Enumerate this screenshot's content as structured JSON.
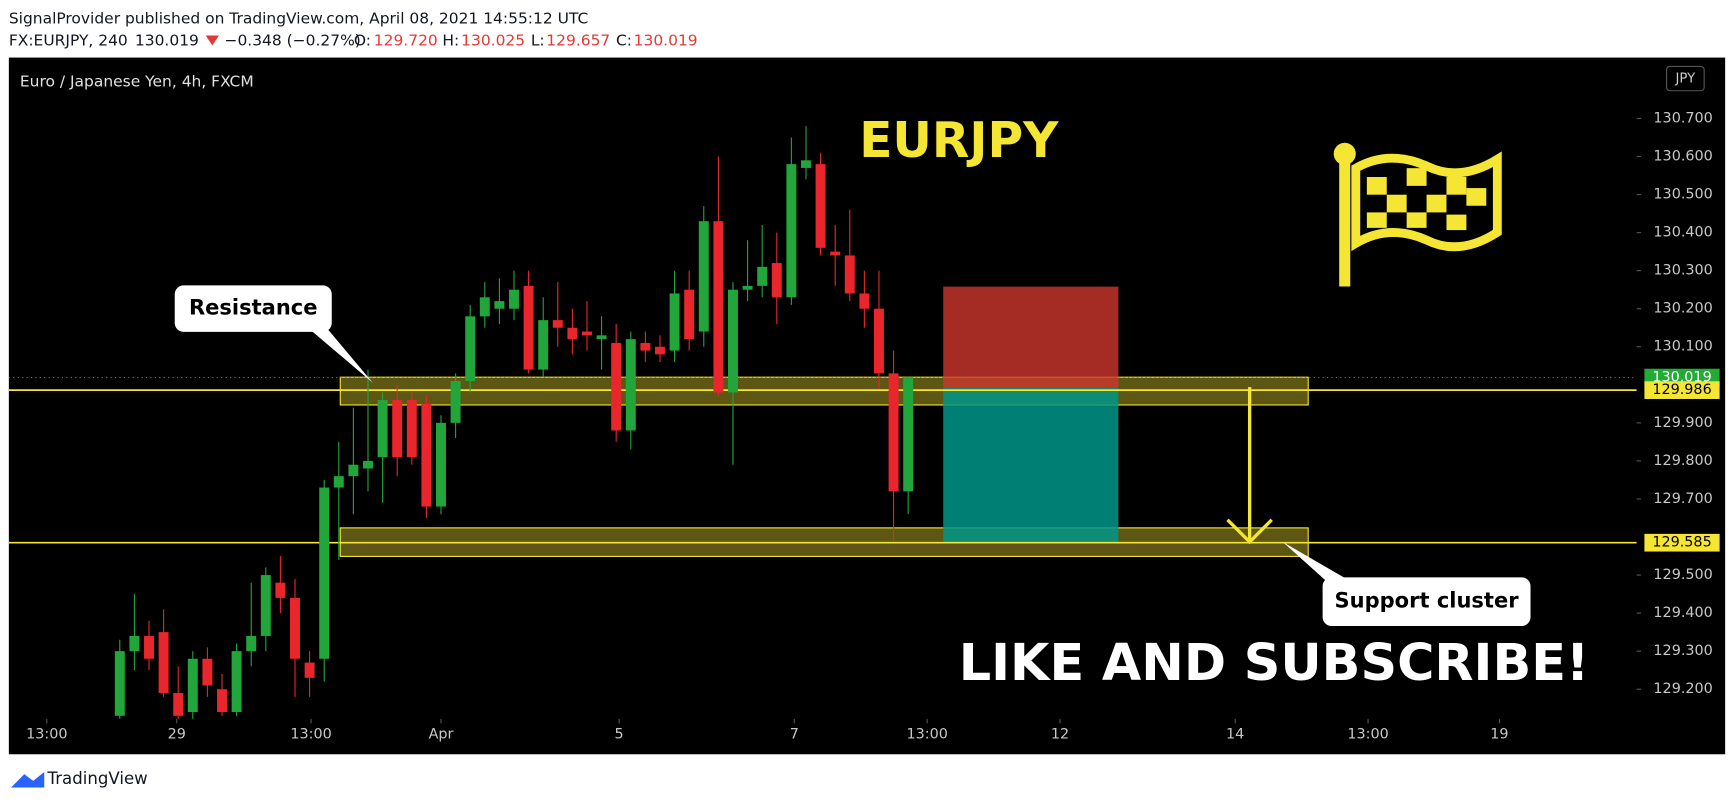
{
  "header": {
    "published": "SignalProvider published on TradingView.com, April 08, 2021 14:55:12 UTC",
    "symbol": "FX:EURJPY, 240",
    "last": "130.019",
    "change": "−0.348 (−0.27%)",
    "ohlc": [
      {
        "label": "O:",
        "value": "129.720"
      },
      {
        "label": "H:",
        "value": "130.025"
      },
      {
        "label": "L:",
        "value": "129.657"
      },
      {
        "label": "C:",
        "value": "130.019"
      }
    ]
  },
  "chart_data": {
    "type": "candlestick",
    "title": "EURJPY",
    "subtitle": "Euro / Japanese Yen, 4h, FXCM",
    "currency": "JPY",
    "up_color": "#22a53b",
    "down_color": "#e8262b",
    "open": [
      129.13,
      129.3,
      129.34,
      129.35,
      129.19,
      129.14,
      129.28,
      129.2,
      129.14,
      129.3,
      129.34,
      129.48,
      129.44,
      129.27,
      129.28,
      129.73,
      129.76,
      129.78,
      129.81,
      129.96,
      129.96,
      129.95,
      129.68,
      129.9,
      130.01,
      130.18,
      130.2,
      130.2,
      130.26,
      130.04,
      130.17,
      130.15,
      130.14,
      130.12,
      130.11,
      129.88,
      130.11,
      130.1,
      130.09,
      130.25,
      130.14,
      130.43,
      129.98,
      130.25,
      130.26,
      130.32,
      130.23,
      130.57,
      130.58,
      130.35,
      130.34,
      130.24,
      130.2,
      130.03,
      129.72
    ],
    "high": [
      129.33,
      129.45,
      129.38,
      129.41,
      129.26,
      129.3,
      129.31,
      129.24,
      129.32,
      129.48,
      129.52,
      129.55,
      129.49,
      129.3,
      129.75,
      129.85,
      129.94,
      130.04,
      129.98,
      130.0,
      129.98,
      129.97,
      129.92,
      130.03,
      130.21,
      130.27,
      130.28,
      130.3,
      130.3,
      130.23,
      130.27,
      130.2,
      130.22,
      130.18,
      130.16,
      130.14,
      130.14,
      130.13,
      130.3,
      130.3,
      130.47,
      130.6,
      130.27,
      130.38,
      130.42,
      130.4,
      130.65,
      130.68,
      130.61,
      130.42,
      130.46,
      130.3,
      130.3,
      130.09,
      130.02
    ],
    "low": [
      129.12,
      129.25,
      129.25,
      129.18,
      129.12,
      129.12,
      129.18,
      129.13,
      129.13,
      129.26,
      129.3,
      129.4,
      129.18,
      129.18,
      129.22,
      129.54,
      129.66,
      129.72,
      129.69,
      129.76,
      129.79,
      129.65,
      129.66,
      129.86,
      129.98,
      130.15,
      130.16,
      130.17,
      130.03,
      130.02,
      130.1,
      130.08,
      130.09,
      130.04,
      129.85,
      129.83,
      130.06,
      130.06,
      130.06,
      130.09,
      130.1,
      129.97,
      129.79,
      130.22,
      130.23,
      130.16,
      130.21,
      130.54,
      130.34,
      130.26,
      130.22,
      130.15,
      129.99,
      129.59,
      129.66
    ],
    "close": [
      129.3,
      129.34,
      129.28,
      129.19,
      129.13,
      129.28,
      129.21,
      129.14,
      129.3,
      129.34,
      129.5,
      129.44,
      129.28,
      129.23,
      129.73,
      129.76,
      129.79,
      129.8,
      129.96,
      129.81,
      129.81,
      129.68,
      129.9,
      130.01,
      130.18,
      130.23,
      130.22,
      130.25,
      130.04,
      130.17,
      130.15,
      130.12,
      130.13,
      130.13,
      129.88,
      130.12,
      130.09,
      130.08,
      130.24,
      130.12,
      130.43,
      129.98,
      130.25,
      130.26,
      130.31,
      130.23,
      130.58,
      130.59,
      130.36,
      130.34,
      130.24,
      130.2,
      130.03,
      129.72,
      130.02
    ],
    "xlim": [
      -7.6,
      103.9
    ],
    "ylim": [
      129.122,
      130.86
    ],
    "xticks": [
      {
        "value": -5,
        "label": "13:00"
      },
      {
        "value": 3.9,
        "label": "29"
      },
      {
        "value": 13.1,
        "label": "13:00"
      },
      {
        "value": 22,
        "label": "Apr"
      },
      {
        "value": 34.2,
        "label": "5"
      },
      {
        "value": 46.2,
        "label": "7"
      },
      {
        "value": 55.3,
        "label": "13:00"
      },
      {
        "value": 64.4,
        "label": "12"
      },
      {
        "value": 76.4,
        "label": "14"
      },
      {
        "value": 85.5,
        "label": "13:00"
      },
      {
        "value": 94.5,
        "label": "19"
      }
    ],
    "yticks": [
      {
        "value": 129.2,
        "label": "129.200"
      },
      {
        "value": 129.3,
        "label": "129.300"
      },
      {
        "value": 129.4,
        "label": "129.400"
      },
      {
        "value": 129.5,
        "label": "129.500"
      },
      {
        "value": 129.7,
        "label": "129.700"
      },
      {
        "value": 129.8,
        "label": "129.800"
      },
      {
        "value": 129.9,
        "label": "129.900"
      },
      {
        "value": 130.1,
        "label": "130.100"
      },
      {
        "value": 130.2,
        "label": "130.200"
      },
      {
        "value": 130.3,
        "label": "130.300"
      },
      {
        "value": 130.4,
        "label": "130.400"
      },
      {
        "value": 130.5,
        "label": "130.500"
      },
      {
        "value": 130.6,
        "label": "130.600"
      },
      {
        "value": 130.7,
        "label": "130.700"
      }
    ],
    "last_price": 130.019,
    "last_color": "#22ab35",
    "levels": [
      {
        "value": 129.986,
        "color": "#f5e633"
      },
      {
        "value": 129.585,
        "color": "#f5e633"
      }
    ],
    "zones": [
      {
        "top": 130.02,
        "bottom": 129.947,
        "start": 15.1,
        "end": 81.4
      },
      {
        "top": 129.624,
        "bottom": 129.549,
        "start": 15.1,
        "end": 81.4
      }
    ],
    "position": {
      "stop": 130.258,
      "entry": 129.991,
      "target": 129.584,
      "start": 56.4,
      "end": 68.4
    },
    "annotations": {
      "resistance": "Resistance",
      "support": "Support cluster",
      "cta": "LIKE AND SUBSCRIBE!"
    }
  },
  "footer": {
    "brand": "TradingView"
  }
}
